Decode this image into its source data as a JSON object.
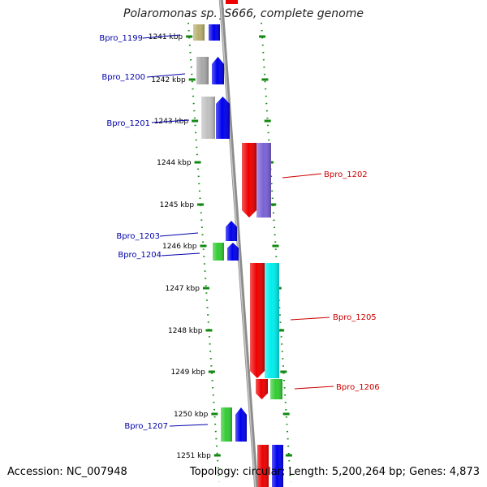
{
  "title": "Polaromonas sp. JS666, complete genome",
  "accession": "Accession: NC_007948",
  "topology": "Topology: circular; Length: 5,200,264 bp; Genes: 4,873",
  "colors": {
    "backbone": "#8c8c8c",
    "tick": "#118811",
    "left_label": "#0000aa",
    "right_label": "#cc0000",
    "kbp_text": "#000000"
  },
  "kbp_labels": [
    "1241 kbp",
    "1242 kbp",
    "1243 kbp",
    "1244 kbp",
    "1245 kbp",
    "1246 kbp",
    "1247 kbp",
    "1248 kbp",
    "1249 kbp",
    "1250 kbp",
    "1251 kbp"
  ],
  "genes": [
    {
      "label": "Bpro_1199",
      "side": "left",
      "colors": [
        "#b8b070",
        "#0000ee"
      ]
    },
    {
      "label": "Bpro_1200",
      "side": "left",
      "colors": [
        "#a8a8a8",
        "#0000ee"
      ]
    },
    {
      "label": "Bpro_1201",
      "side": "left",
      "colors": [
        "#c0c0c0",
        "#0000ee"
      ]
    },
    {
      "label": "Bpro_1202",
      "side": "right",
      "colors": [
        "#ee0000",
        "#7a62d6"
      ]
    },
    {
      "label": "Bpro_1203",
      "side": "left",
      "colors": [
        "#0000ee"
      ]
    },
    {
      "label": "Bpro_1204",
      "side": "left",
      "colors": [
        "#33cc33",
        "#0000ee"
      ]
    },
    {
      "label": "Bpro_1205",
      "side": "right",
      "colors": [
        "#ee0000",
        "#00eeee"
      ]
    },
    {
      "label": "Bpro_1206",
      "side": "right",
      "colors": [
        "#ee0000",
        "#33cc33"
      ]
    },
    {
      "label": "Bpro_1207",
      "side": "left",
      "colors": [
        "#33cc33",
        "#0000ee"
      ]
    }
  ]
}
